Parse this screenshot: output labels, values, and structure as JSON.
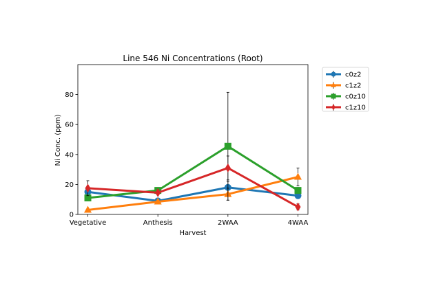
{
  "chart_data": {
    "type": "line",
    "title": "Line 546 Ni Concentrations (Root)",
    "xlabel": "Harvest",
    "ylabel": "Ni Conc. (ppm)",
    "categories": [
      "Vegetative",
      "Anthesis",
      "2WAA",
      "4WAA"
    ],
    "ylim": [
      0,
      100
    ],
    "yticks": [
      0,
      20,
      40,
      60,
      80
    ],
    "grid": false,
    "legend_position": "outside-upper-right",
    "series": [
      {
        "name": "c0z2",
        "color": "#1f77b4",
        "marker": "circle",
        "values": [
          15,
          9,
          18,
          12.5
        ],
        "err": [
          2,
          1,
          4,
          2
        ]
      },
      {
        "name": "c1z2",
        "color": "#ff7f0e",
        "marker": "triangle-up",
        "values": [
          3,
          8.5,
          13.5,
          25
        ],
        "err": [
          0.5,
          1,
          4,
          6
        ]
      },
      {
        "name": "c0z10",
        "color": "#2ca02c",
        "marker": "square",
        "values": [
          11,
          16,
          45.5,
          16
        ],
        "err": [
          1,
          1.5,
          36,
          2
        ]
      },
      {
        "name": "c1z10",
        "color": "#d62728",
        "marker": "diamond",
        "values": [
          17.5,
          14.5,
          31,
          5
        ],
        "err": [
          5,
          1,
          8,
          2
        ]
      }
    ]
  }
}
